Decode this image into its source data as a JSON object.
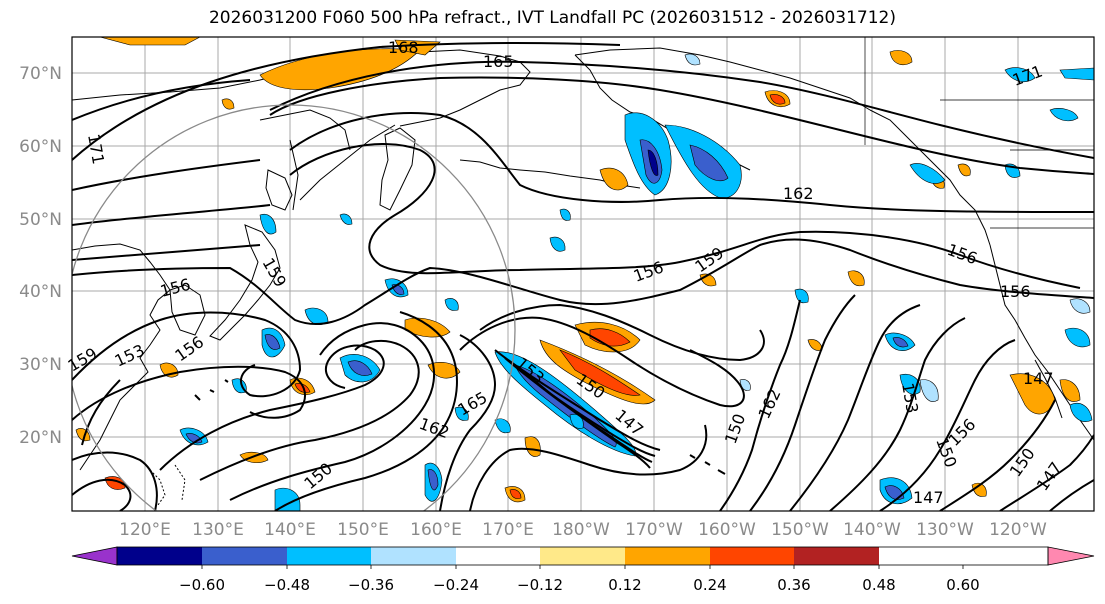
{
  "title": "2026031200 F060 500 hPa refract., IVT Landfall PC (2026031512 - 2026031712)",
  "lat_labels": [
    "70°N",
    "60°N",
    "50°N",
    "40°N",
    "30°N",
    "20°N"
  ],
  "lon_labels": [
    "120°E",
    "130°E",
    "140°E",
    "150°E",
    "160°E",
    "170°E",
    "180°W",
    "170°W",
    "160°W",
    "150°W",
    "140°W",
    "130°W",
    "120°W"
  ],
  "contour_labels": [
    "168",
    "165",
    "171",
    "162",
    "156",
    "159",
    "156",
    "159",
    "153",
    "156",
    "150",
    "147",
    "165",
    "162",
    "150",
    "162",
    "150",
    "153",
    "156",
    "150",
    "147",
    "147",
    "156",
    "150",
    "147",
    "171",
    "156",
    "153",
    "159"
  ],
  "colorbar": {
    "tick_labels": [
      "−0.60",
      "−0.48",
      "−0.36",
      "−0.24",
      "−0.12",
      "0.12",
      "0.24",
      "0.36",
      "0.48",
      "0.60"
    ],
    "colors": [
      "#9932cc",
      "#00008b",
      "#3a5fcd",
      "#00bfff",
      "#b0e2ff",
      "#ffffff",
      "#ffe989",
      "#ffa500",
      "#ff4500",
      "#b22222",
      "#ff88b0"
    ]
  }
}
